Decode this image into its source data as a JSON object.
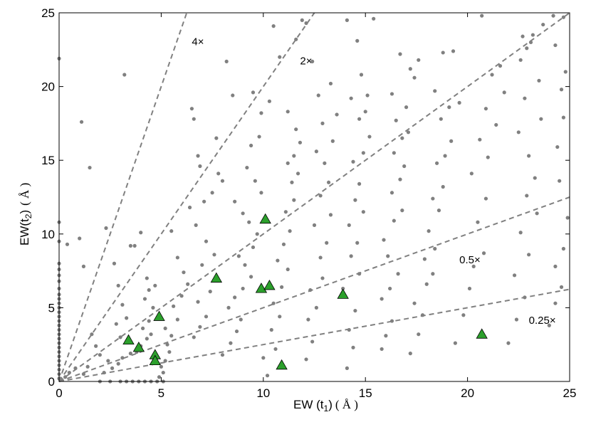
{
  "chart_data": {
    "type": "scatter",
    "xlabel": "EW (t1) (Å)",
    "ylabel": "EW(t2) (Å)",
    "xlabel_parts": {
      "main": "EW (t",
      "sub": "1",
      "close": ")",
      "unit": "( Å )"
    },
    "ylabel_parts": {
      "main": "EW(t",
      "sub": "2",
      "close": ")",
      "unit": "( Å )"
    },
    "xlim": [
      0,
      25
    ],
    "ylim": [
      0,
      25
    ],
    "xticks": [
      "0",
      "5",
      "10",
      "15",
      "20",
      "25"
    ],
    "yticks": [
      "0",
      "5",
      "10",
      "15",
      "20",
      "25"
    ],
    "grid": false,
    "colors": {
      "points": "#808080",
      "triangles": "#2ca02c",
      "triangle_edge": "#000000",
      "lines": "#808080"
    },
    "ratio_lines": [
      {
        "slope": 4,
        "label": "4×",
        "label_at": [
          6.5,
          22.8
        ]
      },
      {
        "slope": 2,
        "label": "2×",
        "label_at": [
          11.8,
          21.5
        ]
      },
      {
        "slope": 1,
        "label": "",
        "label_at": null
      },
      {
        "slope": 0.5,
        "label": "0.5×",
        "label_at": [
          19.6,
          8.0
        ]
      },
      {
        "slope": 0.25,
        "label": "0.25×",
        "label_at": [
          23.0,
          3.9
        ]
      }
    ],
    "series": [
      {
        "marker": "triangle",
        "points": [
          [
            3.4,
            2.8
          ],
          [
            3.9,
            2.3
          ],
          [
            4.7,
            1.8
          ],
          [
            4.7,
            1.4
          ],
          [
            4.9,
            4.4
          ],
          [
            7.7,
            7.0
          ],
          [
            9.9,
            6.3
          ],
          [
            10.3,
            6.5
          ],
          [
            10.1,
            11.0
          ],
          [
            10.9,
            1.1
          ],
          [
            13.9,
            5.9
          ],
          [
            20.7,
            3.2
          ]
        ]
      },
      {
        "marker": "dot",
        "points": [
          [
            0,
            0.2
          ],
          [
            0,
            0.5
          ],
          [
            0,
            0.8
          ],
          [
            0,
            1.1
          ],
          [
            0,
            1.4
          ],
          [
            0,
            1.7
          ],
          [
            0,
            2.0
          ],
          [
            0,
            2.3
          ],
          [
            0,
            2.6
          ],
          [
            0,
            2.9
          ],
          [
            0,
            3.2
          ],
          [
            0,
            3.5
          ],
          [
            0,
            3.8
          ],
          [
            0,
            4.1
          ],
          [
            0,
            4.4
          ],
          [
            0,
            4.7
          ],
          [
            0,
            5.0
          ],
          [
            0,
            5.3
          ],
          [
            0,
            5.6
          ],
          [
            0,
            5.9
          ],
          [
            0,
            6.3
          ],
          [
            0,
            6.8
          ],
          [
            0,
            7.2
          ],
          [
            0,
            7.6
          ],
          [
            0,
            8.0
          ],
          [
            0,
            9.5
          ],
          [
            0,
            10.8
          ],
          [
            0,
            21.9
          ],
          [
            0.3,
            0.3
          ],
          [
            0.5,
            0.6
          ],
          [
            0.8,
            0.9
          ],
          [
            0.4,
            9.3
          ],
          [
            1.0,
            9.7
          ],
          [
            1.2,
            7.8
          ],
          [
            1.1,
            17.6
          ],
          [
            1.5,
            14.5
          ],
          [
            2.0,
            0
          ],
          [
            2.5,
            0
          ],
          [
            3.0,
            0
          ],
          [
            3.3,
            0
          ],
          [
            3.6,
            0
          ],
          [
            3.9,
            0
          ],
          [
            4.2,
            0
          ],
          [
            4.5,
            0
          ],
          [
            4.8,
            0
          ],
          [
            5.1,
            0
          ],
          [
            2.2,
            0.6
          ],
          [
            2.6,
            0.9
          ],
          [
            2.9,
            1.2
          ],
          [
            3.1,
            1.6
          ],
          [
            3.5,
            1.9
          ],
          [
            3.8,
            2.0
          ],
          [
            4.0,
            2.4
          ],
          [
            4.3,
            2.9
          ],
          [
            4.5,
            3.2
          ],
          [
            4.1,
            3.6
          ],
          [
            4.4,
            4.1
          ],
          [
            4.6,
            5.0
          ],
          [
            4.2,
            5.6
          ],
          [
            4.4,
            6.2
          ],
          [
            4.7,
            6.5
          ],
          [
            4.3,
            7.0
          ],
          [
            3.5,
            9.2
          ],
          [
            3.7,
            9.2
          ],
          [
            3.2,
            20.8
          ],
          [
            4.0,
            10.1
          ],
          [
            2.7,
            8.0
          ],
          [
            2.3,
            10.4
          ],
          [
            2.9,
            6.5
          ],
          [
            3.1,
            5.2
          ],
          [
            1.8,
            2.4
          ],
          [
            1.6,
            3.2
          ],
          [
            2.0,
            1.8
          ],
          [
            2.4,
            1.4
          ],
          [
            1.4,
            1.0
          ],
          [
            1.2,
            0.5
          ],
          [
            2.8,
            3.9
          ],
          [
            3.3,
            4.3
          ],
          [
            3.0,
            3.0
          ],
          [
            4.9,
            0.3
          ],
          [
            5.1,
            0.6
          ],
          [
            5.0,
            1.0
          ],
          [
            5.2,
            1.4
          ],
          [
            5.4,
            2.0
          ],
          [
            5.3,
            2.5
          ],
          [
            5.5,
            3.1
          ],
          [
            5.2,
            3.6
          ],
          [
            5.8,
            4.2
          ],
          [
            5.6,
            5.1
          ],
          [
            6.0,
            5.8
          ],
          [
            6.3,
            6.6
          ],
          [
            6.1,
            7.4
          ],
          [
            5.8,
            8.4
          ],
          [
            5.5,
            10.2
          ],
          [
            6.6,
            3.0
          ],
          [
            6.9,
            3.7
          ],
          [
            7.2,
            4.4
          ],
          [
            6.8,
            5.4
          ],
          [
            7.4,
            6.1
          ],
          [
            7.0,
            7.9
          ],
          [
            7.6,
            8.6
          ],
          [
            7.2,
            9.5
          ],
          [
            6.7,
            10.6
          ],
          [
            6.4,
            11.8
          ],
          [
            7.1,
            12.2
          ],
          [
            7.5,
            12.8
          ],
          [
            8.0,
            13.6
          ],
          [
            7.8,
            14.1
          ],
          [
            6.9,
            14.6
          ],
          [
            6.8,
            15.3
          ],
          [
            6.6,
            17.8
          ],
          [
            6.5,
            18.5
          ],
          [
            7.7,
            16.5
          ],
          [
            8.2,
            21.7
          ],
          [
            8.5,
            19.4
          ],
          [
            8.0,
            1.8
          ],
          [
            8.4,
            2.6
          ],
          [
            8.7,
            3.4
          ],
          [
            8.9,
            4.2
          ],
          [
            8.3,
            5.0
          ],
          [
            8.6,
            5.7
          ],
          [
            9.0,
            6.3
          ],
          [
            9.4,
            7.1
          ],
          [
            9.1,
            7.9
          ],
          [
            8.8,
            8.5
          ],
          [
            9.5,
            9.1
          ],
          [
            9.7,
            10.0
          ],
          [
            9.3,
            10.8
          ],
          [
            9.0,
            11.4
          ],
          [
            8.6,
            12.2
          ],
          [
            9.9,
            12.8
          ],
          [
            9.6,
            13.6
          ],
          [
            9.2,
            14.5
          ],
          [
            9.4,
            16.0
          ],
          [
            9.8,
            16.6
          ],
          [
            9.9,
            18.2
          ],
          [
            9.5,
            19.6
          ],
          [
            10.2,
            0.4
          ],
          [
            10.0,
            1.6
          ],
          [
            10.6,
            2.2
          ],
          [
            10.4,
            3.5
          ],
          [
            10.8,
            4.4
          ],
          [
            10.5,
            5.3
          ],
          [
            10.9,
            6.4
          ],
          [
            11.2,
            7.6
          ],
          [
            10.7,
            8.2
          ],
          [
            11.0,
            9.3
          ],
          [
            11.3,
            10.2
          ],
          [
            11.1,
            11.5
          ],
          [
            11.5,
            12.3
          ],
          [
            11.4,
            13.5
          ],
          [
            11.7,
            14.1
          ],
          [
            11.2,
            14.8
          ],
          [
            11.5,
            15.3
          ],
          [
            11.8,
            16.2
          ],
          [
            11.6,
            17.1
          ],
          [
            11.2,
            18.3
          ],
          [
            10.3,
            19.0
          ],
          [
            10.5,
            24.1
          ],
          [
            10.8,
            22.0
          ],
          [
            11.9,
            24.5
          ],
          [
            11.6,
            23.2
          ],
          [
            12.1,
            1.5
          ],
          [
            12.4,
            2.7
          ],
          [
            12.2,
            4.2
          ],
          [
            12.6,
            5.0
          ],
          [
            12.3,
            6.2
          ],
          [
            12.9,
            7.0
          ],
          [
            12.8,
            8.4
          ],
          [
            13.1,
            9.4
          ],
          [
            12.5,
            10.6
          ],
          [
            13.3,
            11.3
          ],
          [
            12.8,
            12.6
          ],
          [
            13.2,
            13.5
          ],
          [
            13.0,
            14.8
          ],
          [
            12.6,
            15.6
          ],
          [
            13.4,
            16.3
          ],
          [
            12.9,
            17.5
          ],
          [
            13.6,
            18.1
          ],
          [
            12.7,
            19.4
          ],
          [
            13.3,
            20.2
          ],
          [
            12.1,
            24.3
          ],
          [
            12.4,
            21.7
          ],
          [
            14.1,
            24.5
          ],
          [
            14.1,
            0.9
          ],
          [
            14.4,
            2.3
          ],
          [
            14.2,
            3.5
          ],
          [
            14.5,
            4.8
          ],
          [
            13.9,
            6.3
          ],
          [
            14.7,
            7.3
          ],
          [
            14.3,
            8.5
          ],
          [
            14.6,
            9.4
          ],
          [
            14.2,
            10.6
          ],
          [
            14.9,
            11.5
          ],
          [
            14.5,
            12.3
          ],
          [
            14.7,
            13.4
          ],
          [
            14.4,
            14.9
          ],
          [
            14.9,
            15.5
          ],
          [
            15.2,
            16.6
          ],
          [
            14.7,
            17.8
          ],
          [
            15.0,
            18.3
          ],
          [
            14.3,
            19.2
          ],
          [
            15.1,
            19.4
          ],
          [
            14.8,
            20.8
          ],
          [
            15.4,
            24.6
          ],
          [
            14.6,
            23.1
          ],
          [
            15.8,
            2.2
          ],
          [
            16.0,
            3.1
          ],
          [
            16.3,
            4.1
          ],
          [
            15.8,
            5.6
          ],
          [
            16.2,
            6.3
          ],
          [
            16.6,
            7.3
          ],
          [
            16.1,
            8.5
          ],
          [
            15.9,
            9.6
          ],
          [
            16.4,
            10.9
          ],
          [
            16.8,
            11.6
          ],
          [
            16.3,
            12.8
          ],
          [
            16.7,
            13.7
          ],
          [
            16.9,
            14.6
          ],
          [
            16.4,
            15.5
          ],
          [
            16.8,
            16.5
          ],
          [
            17.1,
            16.9
          ],
          [
            16.5,
            17.7
          ],
          [
            17.0,
            18.6
          ],
          [
            16.3,
            19.5
          ],
          [
            17.2,
            21.2
          ],
          [
            17.4,
            20.6
          ],
          [
            17.6,
            21.8
          ],
          [
            16.7,
            22.2
          ],
          [
            17.2,
            1.9
          ],
          [
            17.6,
            3.2
          ],
          [
            17.8,
            4.5
          ],
          [
            17.4,
            5.3
          ],
          [
            18.0,
            6.6
          ],
          [
            18.3,
            7.3
          ],
          [
            17.9,
            8.3
          ],
          [
            18.4,
            9.0
          ],
          [
            18.1,
            10.2
          ],
          [
            18.6,
            11.6
          ],
          [
            18.3,
            12.4
          ],
          [
            18.8,
            13.2
          ],
          [
            18.5,
            14.8
          ],
          [
            18.9,
            15.3
          ],
          [
            19.2,
            16.3
          ],
          [
            18.7,
            17.8
          ],
          [
            19.1,
            18.6
          ],
          [
            18.4,
            19.7
          ],
          [
            19.6,
            18.9
          ],
          [
            18.8,
            22.3
          ],
          [
            19.3,
            22.4
          ],
          [
            19.4,
            2.6
          ],
          [
            19.8,
            4.5
          ],
          [
            20.1,
            6.3
          ],
          [
            20.3,
            7.8
          ],
          [
            20.8,
            8.7
          ],
          [
            20.5,
            10.8
          ],
          [
            20.9,
            12.4
          ],
          [
            20.2,
            14.1
          ],
          [
            21.0,
            15.2
          ],
          [
            20.6,
            16.4
          ],
          [
            21.4,
            17.4
          ],
          [
            20.9,
            18.5
          ],
          [
            21.8,
            19.6
          ],
          [
            21.2,
            20.8
          ],
          [
            21.6,
            21.4
          ],
          [
            20.7,
            24.8
          ],
          [
            22.0,
            2.6
          ],
          [
            22.4,
            4.2
          ],
          [
            22.8,
            5.7
          ],
          [
            22.3,
            7.2
          ],
          [
            23.0,
            8.6
          ],
          [
            22.6,
            10.1
          ],
          [
            23.4,
            11.4
          ],
          [
            22.9,
            12.6
          ],
          [
            23.3,
            13.8
          ],
          [
            23.0,
            15.3
          ],
          [
            22.5,
            16.9
          ],
          [
            23.6,
            17.8
          ],
          [
            22.8,
            19.2
          ],
          [
            23.5,
            20.4
          ],
          [
            22.6,
            21.8
          ],
          [
            22.9,
            22.6
          ],
          [
            22.7,
            23.4
          ],
          [
            23.1,
            23.0
          ],
          [
            23.2,
            23.5
          ],
          [
            23.7,
            24.2
          ],
          [
            24.2,
            24.8
          ],
          [
            24.7,
            24.7
          ],
          [
            24.0,
            3.8
          ],
          [
            24.3,
            5.3
          ],
          [
            24.6,
            6.4
          ],
          [
            24.3,
            7.8
          ],
          [
            24.7,
            9.0
          ],
          [
            24.9,
            11.1
          ],
          [
            24.5,
            13.6
          ],
          [
            24.4,
            15.9
          ],
          [
            24.7,
            17.9
          ],
          [
            24.6,
            19.8
          ],
          [
            24.8,
            21.0
          ],
          [
            24.3,
            22.8
          ]
        ]
      }
    ]
  }
}
